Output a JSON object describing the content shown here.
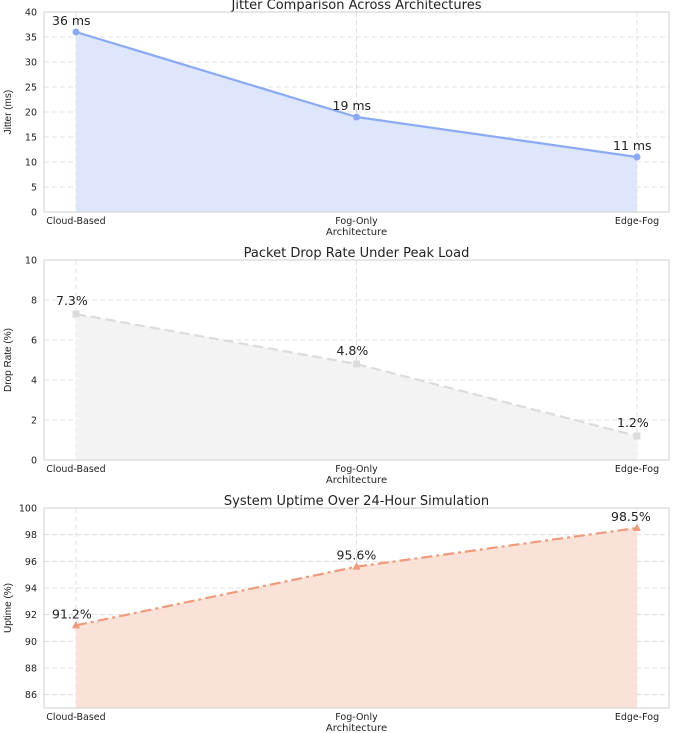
{
  "chart_data": [
    {
      "type": "area",
      "title": "Jitter Comparison Across Architectures",
      "xlabel": "Architecture",
      "ylabel": "Jitter (ms)",
      "categories": [
        "Cloud-Based",
        "Fog-Only",
        "Edge-Fog"
      ],
      "values": [
        36,
        19,
        11
      ],
      "data_labels": [
        "36 ms",
        "19 ms",
        "11 ms"
      ],
      "ylim": [
        0,
        40
      ],
      "yticks": [
        "0",
        "5",
        "10",
        "15",
        "20",
        "25",
        "30",
        "35",
        "40"
      ],
      "line_color": "#8aaaf5",
      "fill_color": "#dde6fb",
      "line_style": "solid",
      "marker": "circle"
    },
    {
      "type": "area",
      "title": "Packet Drop Rate Under Peak Load",
      "xlabel": "Architecture",
      "ylabel": "Drop Rate (%)",
      "categories": [
        "Cloud-Based",
        "Fog-Only",
        "Edge-Fog"
      ],
      "values": [
        7.3,
        4.8,
        1.2
      ],
      "data_labels": [
        "7.3%",
        "4.8%",
        "1.2%"
      ],
      "ylim": [
        0,
        10
      ],
      "yticks": [
        "0",
        "2",
        "4",
        "6",
        "8",
        "10"
      ],
      "line_color": "#dcdcdc",
      "fill_color": "#f3f3f3",
      "line_style": "dashed",
      "marker": "square"
    },
    {
      "type": "area",
      "title": "System Uptime Over 24-Hour Simulation",
      "xlabel": "Architecture",
      "ylabel": "Uptime (%)",
      "categories": [
        "Cloud-Based",
        "Fog-Only",
        "Edge-Fog"
      ],
      "values": [
        91.2,
        95.6,
        98.5
      ],
      "data_labels": [
        "91.2%",
        "95.6%",
        "98.5%"
      ],
      "ylim": [
        85,
        100
      ],
      "yticks": [
        "86",
        "88",
        "90",
        "92",
        "94",
        "96",
        "98",
        "100"
      ],
      "line_color": "#ee9a7b",
      "fill_color": "#fbe2d9",
      "line_style": "dashdot",
      "marker": "triangle"
    }
  ]
}
